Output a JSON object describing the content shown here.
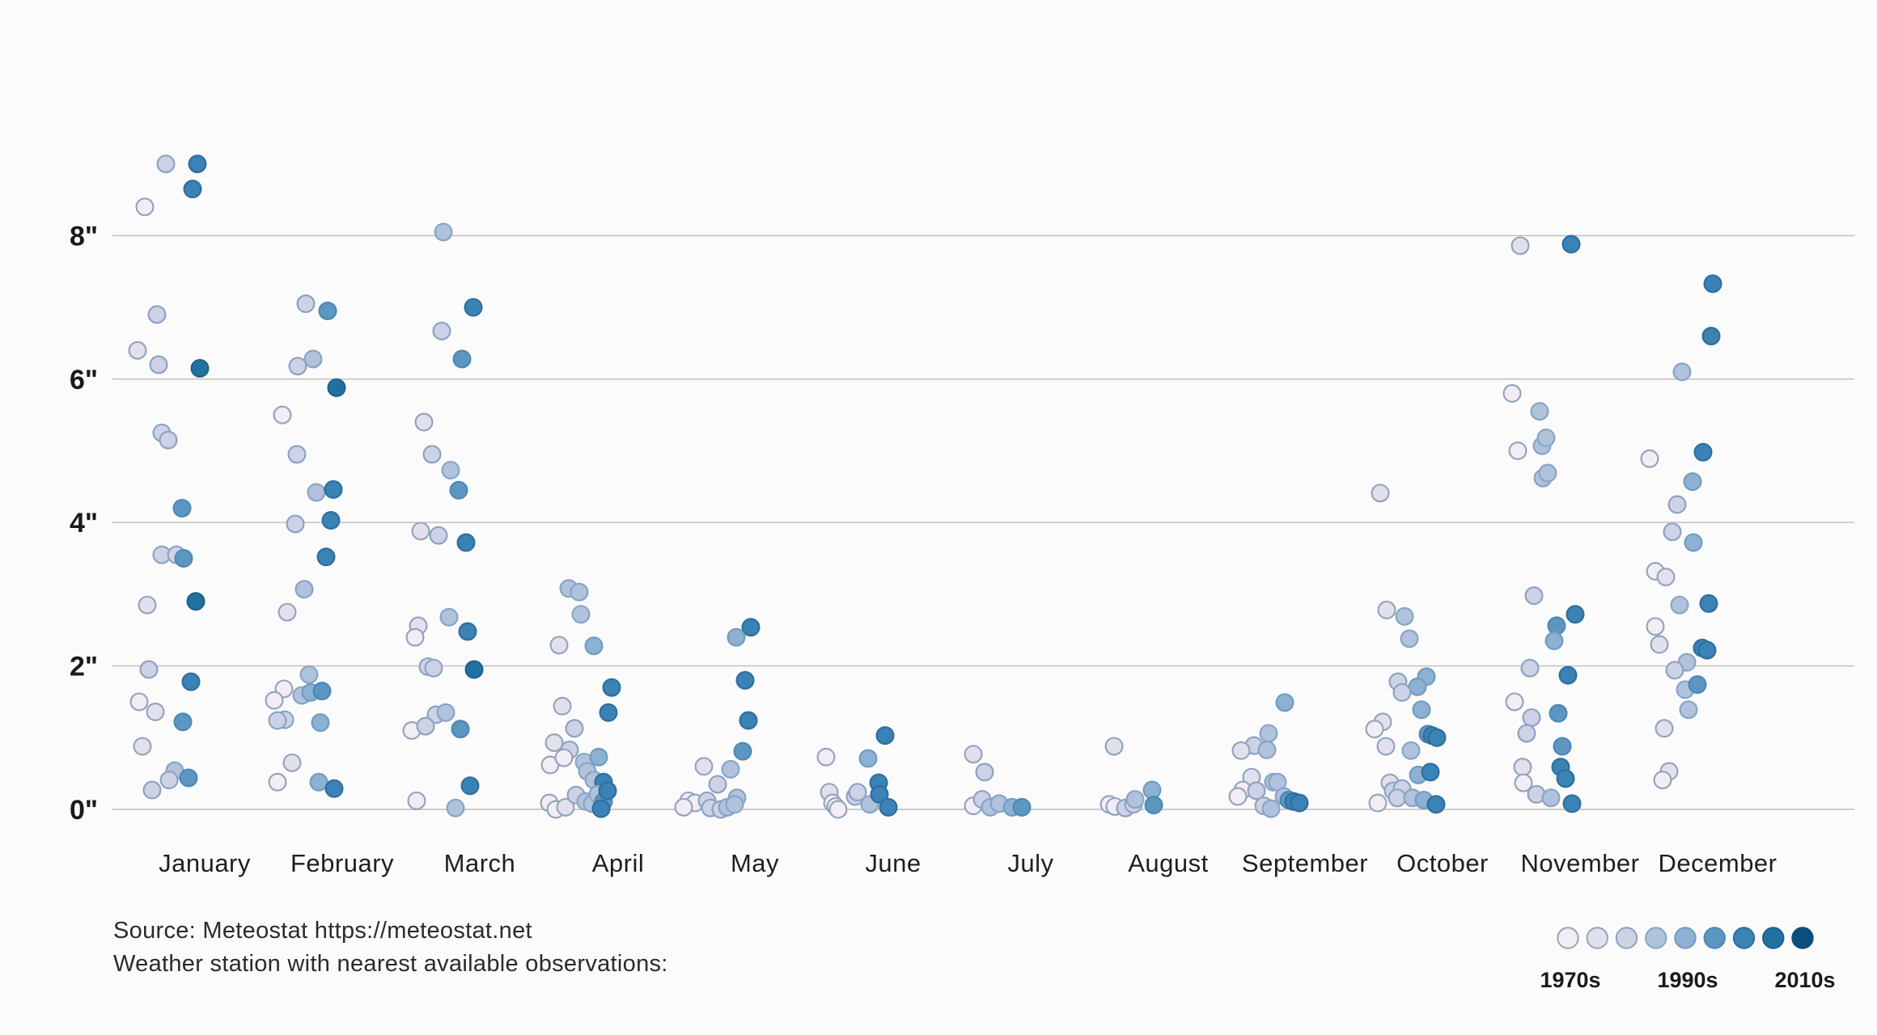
{
  "page": {
    "background": "#fcfbfc"
  },
  "source": {
    "line1": "Source: Meteostat https://meteostat.net",
    "line2": "Weather station with nearest available observations:"
  },
  "legend": {
    "decade_labels": [
      "1970s",
      "1990s",
      "2010s"
    ],
    "label_swatch_index": [
      0,
      4,
      8
    ],
    "swatch_count": 9
  },
  "chart_data": {
    "type": "scatter",
    "title": "",
    "unit": "inches",
    "grid": true,
    "legend_position": "bottom-right",
    "ylim": [
      0,
      9.3
    ],
    "y_tick_values": [
      0,
      2,
      4,
      6,
      8
    ],
    "y_tick_labels": [
      "0\"",
      "2\"",
      "4\"",
      "6\"",
      "8\""
    ],
    "color_scale": {
      "start_label": "1970s",
      "mid_label": "1990s",
      "end_label": "2010s",
      "steps": 9
    },
    "palette": [
      {
        "fill": "#f2edf4",
        "stroke": "#93a5bd"
      },
      {
        "fill": "#e3e0ee",
        "stroke": "#93a5bd"
      },
      {
        "fill": "#cdd2e6",
        "stroke": "#8ba3c0"
      },
      {
        "fill": "#b0c2dc",
        "stroke": "#87a5c4"
      },
      {
        "fill": "#8db1d3",
        "stroke": "#6f9cc0"
      },
      {
        "fill": "#5e96c2",
        "stroke": "#4c88b5"
      },
      {
        "fill": "#3b82b5",
        "stroke": "#2d6fa0"
      },
      {
        "fill": "#21719f",
        "stroke": "#1d628c"
      },
      {
        "fill": "#0c4d7c",
        "stroke": "#0c4d7c"
      }
    ],
    "months": [
      "January",
      "February",
      "March",
      "April",
      "May",
      "June",
      "July",
      "August",
      "September",
      "October",
      "November",
      "December"
    ],
    "points_format": "[x_jitter_px_from_month_center, snowfall_inches, color_index_0_1970s_to_8_2010s]",
    "points": [
      [
        [
          -48,
          9.0,
          2
        ],
        [
          -9,
          9.0,
          6
        ],
        [
          -15,
          8.65,
          6
        ],
        [
          -74,
          8.4,
          0
        ],
        [
          -59,
          6.9,
          2
        ],
        [
          -83,
          6.4,
          1
        ],
        [
          -57,
          6.2,
          2
        ],
        [
          -6,
          6.15,
          7
        ],
        [
          -53,
          5.25,
          2
        ],
        [
          -45,
          5.15,
          2
        ],
        [
          -28,
          4.2,
          5
        ],
        [
          -53,
          3.55,
          2
        ],
        [
          -35,
          3.55,
          2
        ],
        [
          -26,
          3.5,
          5
        ],
        [
          -71,
          2.85,
          1
        ],
        [
          -11,
          2.9,
          7
        ],
        [
          -69,
          1.95,
          2
        ],
        [
          -17,
          1.78,
          6
        ],
        [
          -81,
          1.5,
          0
        ],
        [
          -61,
          1.36,
          1
        ],
        [
          -27,
          1.22,
          5
        ],
        [
          -77,
          0.88,
          1
        ],
        [
          -37,
          0.54,
          3
        ],
        [
          -20,
          0.44,
          5
        ],
        [
          -44,
          0.41,
          2
        ],
        [
          -65,
          0.27,
          2
        ]
      ],
      [
        [
          -45,
          7.05,
          2
        ],
        [
          -18,
          6.95,
          5
        ],
        [
          -36,
          6.28,
          3
        ],
        [
          -55,
          6.18,
          2
        ],
        [
          -7,
          5.88,
          7
        ],
        [
          -74,
          5.5,
          0
        ],
        [
          -56,
          4.95,
          2
        ],
        [
          -32,
          4.42,
          3
        ],
        [
          -11,
          4.46,
          6
        ],
        [
          -58,
          3.98,
          2
        ],
        [
          -14,
          4.03,
          6
        ],
        [
          -20,
          3.52,
          6
        ],
        [
          -47,
          3.07,
          3
        ],
        [
          -68,
          2.75,
          1
        ],
        [
          -41,
          1.88,
          3
        ],
        [
          -72,
          1.68,
          0
        ],
        [
          -84,
          1.52,
          0
        ],
        [
          -50,
          1.59,
          3
        ],
        [
          -39,
          1.63,
          4
        ],
        [
          -25,
          1.65,
          5
        ],
        [
          -71,
          1.25,
          2
        ],
        [
          -80,
          1.24,
          2
        ],
        [
          -27,
          1.21,
          4
        ],
        [
          -62,
          0.65,
          1
        ],
        [
          -80,
          0.38,
          0
        ],
        [
          -29,
          0.38,
          4
        ],
        [
          -10,
          0.29,
          6
        ]
      ],
      [
        [
          -45,
          8.05,
          3
        ],
        [
          -8,
          7.0,
          6
        ],
        [
          -47,
          6.67,
          2
        ],
        [
          -22,
          6.28,
          5
        ],
        [
          -69,
          5.4,
          1
        ],
        [
          -59,
          4.95,
          2
        ],
        [
          -36,
          4.73,
          3
        ],
        [
          -26,
          4.45,
          5
        ],
        [
          -73,
          3.88,
          1
        ],
        [
          -51,
          3.82,
          2
        ],
        [
          -17,
          3.72,
          6
        ],
        [
          -38,
          2.68,
          3
        ],
        [
          -76,
          2.56,
          1
        ],
        [
          -80,
          2.4,
          0
        ],
        [
          -15,
          2.48,
          6
        ],
        [
          -64,
          1.99,
          2
        ],
        [
          -57,
          1.97,
          2
        ],
        [
          -7,
          1.95,
          7
        ],
        [
          -54,
          1.32,
          2
        ],
        [
          -42,
          1.35,
          3
        ],
        [
          -24,
          1.12,
          5
        ],
        [
          -84,
          1.1,
          0
        ],
        [
          -67,
          1.16,
          2
        ],
        [
          -12,
          0.33,
          6
        ],
        [
          -78,
          0.12,
          0
        ],
        [
          -30,
          0.02,
          3
        ]
      ],
      [
        [
          -61,
          3.08,
          3
        ],
        [
          -48,
          3.03,
          3
        ],
        [
          -46,
          2.72,
          3
        ],
        [
          -73,
          2.29,
          1
        ],
        [
          -30,
          2.28,
          4
        ],
        [
          -69,
          1.44,
          1
        ],
        [
          -8,
          1.7,
          6
        ],
        [
          -12,
          1.35,
          6
        ],
        [
          -54,
          1.13,
          2
        ],
        [
          -79,
          0.93,
          1
        ],
        [
          -60,
          0.83,
          2
        ],
        [
          -84,
          0.62,
          0
        ],
        [
          -67,
          0.72,
          0
        ],
        [
          -42,
          0.66,
          3
        ],
        [
          -24,
          0.73,
          4
        ],
        [
          -38,
          0.53,
          3
        ],
        [
          -30,
          0.41,
          3
        ],
        [
          -18,
          0.38,
          6
        ],
        [
          -85,
          0.09,
          0
        ],
        [
          -77,
          0.0,
          0
        ],
        [
          -65,
          0.03,
          1
        ],
        [
          -52,
          0.2,
          2
        ],
        [
          -40,
          0.11,
          3
        ],
        [
          -32,
          0.08,
          3
        ],
        [
          -25,
          0.21,
          3
        ],
        [
          -18,
          0.11,
          5
        ],
        [
          -21,
          0.01,
          6
        ],
        [
          -13,
          0.26,
          6
        ]
      ],
      [
        [
          -5,
          2.54,
          6
        ],
        [
          -23,
          2.4,
          4
        ],
        [
          -12,
          1.8,
          6
        ],
        [
          -8,
          1.24,
          6
        ],
        [
          -15,
          0.81,
          5
        ],
        [
          -63,
          0.6,
          1
        ],
        [
          -30,
          0.56,
          3
        ],
        [
          -46,
          0.35,
          2
        ],
        [
          -22,
          0.16,
          3
        ],
        [
          -82,
          0.12,
          0
        ],
        [
          -74,
          0.09,
          0
        ],
        [
          -88,
          0.03,
          0
        ],
        [
          -59,
          0.12,
          2
        ],
        [
          -55,
          0.02,
          2
        ],
        [
          -42,
          0.0,
          2
        ],
        [
          -34,
          0.03,
          3
        ],
        [
          -25,
          0.07,
          3
        ]
      ],
      [
        [
          -83,
          0.73,
          0
        ],
        [
          -10,
          1.03,
          6
        ],
        [
          -31,
          0.71,
          4
        ],
        [
          -79,
          0.24,
          1
        ],
        [
          -75,
          0.09,
          0
        ],
        [
          -71,
          0.04,
          0
        ],
        [
          -68,
          0.0,
          0
        ],
        [
          -47,
          0.18,
          2
        ],
        [
          -44,
          0.24,
          2
        ],
        [
          -29,
          0.07,
          3
        ],
        [
          -18,
          0.37,
          6
        ],
        [
          -17,
          0.21,
          6
        ],
        [
          -6,
          0.03,
          6
        ]
      ],
      [
        [
          -71,
          0.77,
          1
        ],
        [
          -57,
          0.52,
          2
        ],
        [
          -71,
          0.05,
          0
        ],
        [
          -60,
          0.14,
          2
        ],
        [
          -50,
          0.03,
          3
        ],
        [
          -39,
          0.08,
          3
        ],
        [
          -23,
          0.03,
          4
        ],
        [
          -11,
          0.03,
          5
        ]
      ],
      [
        [
          -67,
          0.88,
          1
        ],
        [
          -20,
          0.27,
          4
        ],
        [
          -73,
          0.07,
          0
        ],
        [
          -66,
          0.04,
          0
        ],
        [
          -53,
          0.02,
          2
        ],
        [
          -43,
          0.07,
          2
        ],
        [
          -41,
          0.14,
          3
        ],
        [
          -18,
          0.06,
          5
        ]
      ],
      [
        [
          -25,
          1.49,
          4
        ],
        [
          -45,
          1.06,
          3
        ],
        [
          -63,
          0.89,
          2
        ],
        [
          -47,
          0.83,
          3
        ],
        [
          -79,
          0.82,
          1
        ],
        [
          -66,
          0.45,
          1
        ],
        [
          -77,
          0.27,
          0
        ],
        [
          -83,
          0.18,
          0
        ],
        [
          -60,
          0.26,
          2
        ],
        [
          -39,
          0.38,
          3
        ],
        [
          -34,
          0.38,
          3
        ],
        [
          -51,
          0.05,
          2
        ],
        [
          -42,
          0.01,
          3
        ],
        [
          -26,
          0.18,
          3
        ],
        [
          -20,
          0.13,
          5
        ],
        [
          -14,
          0.11,
          6
        ],
        [
          -7,
          0.09,
          6
        ]
      ],
      [
        [
          -77,
          4.41,
          1
        ],
        [
          -69,
          2.78,
          1
        ],
        [
          -47,
          2.69,
          3
        ],
        [
          -41,
          2.38,
          3
        ],
        [
          -55,
          1.78,
          2
        ],
        [
          -20,
          1.85,
          4
        ],
        [
          -31,
          1.71,
          4
        ],
        [
          -50,
          1.63,
          2
        ],
        [
          -26,
          1.39,
          4
        ],
        [
          -74,
          1.22,
          1
        ],
        [
          -84,
          1.12,
          0
        ],
        [
          -70,
          0.88,
          1
        ],
        [
          -18,
          1.05,
          5
        ],
        [
          -13,
          1.03,
          6
        ],
        [
          -7,
          1.0,
          6
        ],
        [
          -39,
          0.82,
          3
        ],
        [
          -30,
          0.48,
          4
        ],
        [
          -15,
          0.52,
          6
        ],
        [
          -65,
          0.37,
          1
        ],
        [
          -80,
          0.09,
          0
        ],
        [
          -61,
          0.26,
          2
        ],
        [
          -50,
          0.29,
          2
        ],
        [
          -56,
          0.16,
          2
        ],
        [
          -37,
          0.16,
          3
        ],
        [
          -23,
          0.13,
          4
        ],
        [
          -8,
          0.07,
          6
        ]
      ],
      [
        [
          -74,
          7.86,
          1
        ],
        [
          -11,
          7.88,
          6
        ],
        [
          -84,
          5.8,
          0
        ],
        [
          -50,
          5.55,
          3
        ],
        [
          -77,
          5.0,
          0
        ],
        [
          -47,
          5.07,
          3
        ],
        [
          -42,
          5.18,
          3
        ],
        [
          -46,
          4.62,
          3
        ],
        [
          -40,
          4.69,
          3
        ],
        [
          -57,
          2.98,
          2
        ],
        [
          -6,
          2.72,
          6
        ],
        [
          -29,
          2.56,
          5
        ],
        [
          -32,
          2.35,
          4
        ],
        [
          -62,
          1.97,
          2
        ],
        [
          -15,
          1.87,
          6
        ],
        [
          -81,
          1.5,
          0
        ],
        [
          -27,
          1.34,
          5
        ],
        [
          -60,
          1.28,
          2
        ],
        [
          -66,
          1.06,
          2
        ],
        [
          -22,
          0.88,
          5
        ],
        [
          -24,
          0.59,
          6
        ],
        [
          -18,
          0.43,
          6
        ],
        [
          -71,
          0.59,
          1
        ],
        [
          -70,
          0.37,
          0
        ],
        [
          -54,
          0.21,
          2
        ],
        [
          -36,
          0.16,
          3
        ],
        [
          -10,
          0.08,
          6
        ]
      ],
      [
        [
          -6,
          7.33,
          6
        ],
        [
          -8,
          6.6,
          6
        ],
        [
          -44,
          6.1,
          3
        ],
        [
          -84,
          4.89,
          0
        ],
        [
          -18,
          4.98,
          6
        ],
        [
          -31,
          4.57,
          4
        ],
        [
          -50,
          4.25,
          2
        ],
        [
          -56,
          3.87,
          2
        ],
        [
          -30,
          3.72,
          4
        ],
        [
          -77,
          3.32,
          0
        ],
        [
          -64,
          3.24,
          1
        ],
        [
          -47,
          2.85,
          3
        ],
        [
          -11,
          2.87,
          6
        ],
        [
          -77,
          2.55,
          0
        ],
        [
          -72,
          2.3,
          1
        ],
        [
          -19,
          2.25,
          6
        ],
        [
          -13,
          2.22,
          6
        ],
        [
          -38,
          2.05,
          3
        ],
        [
          -53,
          1.94,
          2
        ],
        [
          -40,
          1.67,
          3
        ],
        [
          -25,
          1.74,
          5
        ],
        [
          -36,
          1.39,
          3
        ],
        [
          -66,
          1.13,
          1
        ],
        [
          -60,
          0.53,
          1
        ],
        [
          -68,
          0.41,
          0
        ]
      ]
    ]
  }
}
